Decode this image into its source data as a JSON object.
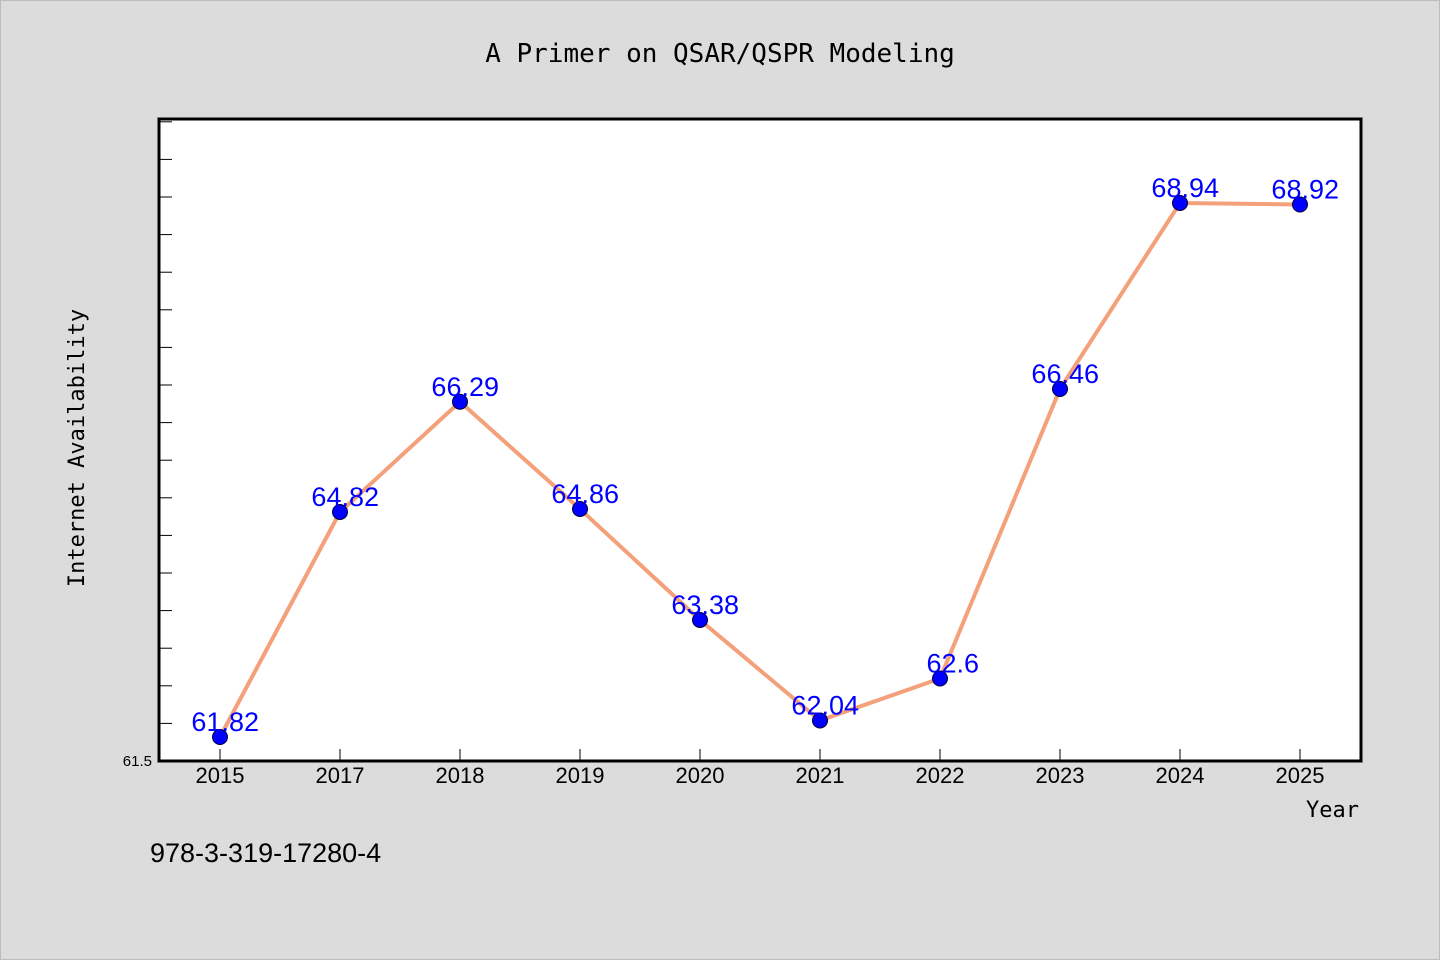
{
  "caption": "978-3-319-17280-4",
  "colors": {
    "background": "#dcdcdc",
    "plot_background": "#ffffff",
    "line": "#f4a07a",
    "marker": "#0000ff",
    "data_label": "#0000ff"
  },
  "chart_data": {
    "type": "line",
    "title": "A Primer on QSAR/QSPR Modeling",
    "xlabel": "Year",
    "ylabel": "Internet Availability",
    "categories": [
      "2015",
      "2017",
      "2018",
      "2019",
      "2020",
      "2021",
      "2022",
      "2023",
      "2024",
      "2025"
    ],
    "values": [
      61.82,
      64.82,
      66.29,
      64.86,
      63.38,
      62.04,
      62.6,
      66.46,
      68.94,
      68.92
    ],
    "data_labels": [
      "61.82",
      "64.82",
      "66.29",
      "64.86",
      "63.38",
      "62.04",
      "62.6",
      "66.46",
      "68.94",
      "68.92"
    ],
    "y_tick_labels": [
      "61.5"
    ],
    "ylim": [
      61.5,
      70.0
    ],
    "grid": false,
    "legend": "none",
    "markers": "filled-circle"
  }
}
